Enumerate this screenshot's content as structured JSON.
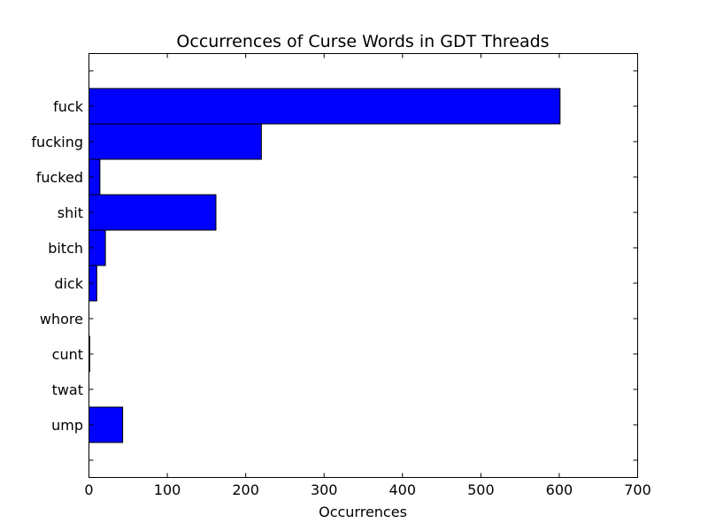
{
  "chart_data": {
    "type": "bar",
    "orientation": "horizontal",
    "title": "Occurrences of Curse Words in GDT Threads",
    "xlabel": "Occurrences",
    "ylabel": "",
    "categories": [
      "fuck",
      "fucking",
      "fucked",
      "shit",
      "bitch",
      "dick",
      "whore",
      "cunt",
      "twat",
      "ump"
    ],
    "values": [
      601,
      220,
      14,
      162,
      21,
      10,
      0,
      1,
      0,
      43
    ],
    "xlim": [
      0,
      700
    ],
    "xticks": [
      0,
      100,
      200,
      300,
      400,
      500,
      600,
      700
    ],
    "bar_color": "#0000ff",
    "edge_color": "#000000",
    "grid": false,
    "legend": "none"
  }
}
